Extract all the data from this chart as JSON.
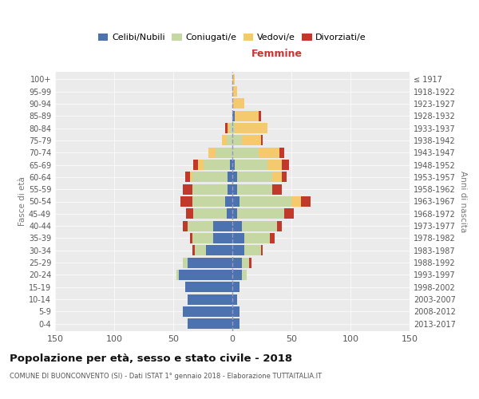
{
  "age_groups": [
    "100+",
    "95-99",
    "90-94",
    "85-89",
    "80-84",
    "75-79",
    "70-74",
    "65-69",
    "60-64",
    "55-59",
    "50-54",
    "45-49",
    "40-44",
    "35-39",
    "30-34",
    "25-29",
    "20-24",
    "15-19",
    "10-14",
    "5-9",
    "0-4"
  ],
  "birth_years": [
    "≤ 1917",
    "1918-1922",
    "1923-1927",
    "1928-1932",
    "1933-1937",
    "1938-1942",
    "1943-1947",
    "1948-1952",
    "1953-1957",
    "1958-1962",
    "1963-1967",
    "1968-1972",
    "1973-1977",
    "1978-1982",
    "1983-1987",
    "1988-1992",
    "1993-1997",
    "1998-2002",
    "2003-2007",
    "2008-2012",
    "2013-2017"
  ],
  "m_celibi": [
    38,
    42,
    38,
    40,
    45,
    38,
    22,
    16,
    16,
    5,
    6,
    4,
    4,
    2,
    0,
    0,
    0,
    0,
    0,
    0,
    0
  ],
  "m_coniugati": [
    0,
    0,
    0,
    0,
    2,
    4,
    10,
    18,
    22,
    28,
    28,
    30,
    30,
    22,
    14,
    5,
    2,
    0,
    0,
    0,
    0
  ],
  "m_vedovi": [
    0,
    0,
    0,
    0,
    0,
    0,
    0,
    0,
    0,
    0,
    0,
    0,
    2,
    5,
    6,
    4,
    2,
    0,
    0,
    0,
    0
  ],
  "m_divorziati": [
    0,
    0,
    0,
    0,
    0,
    0,
    2,
    2,
    4,
    6,
    10,
    8,
    4,
    4,
    0,
    0,
    2,
    0,
    0,
    0,
    0
  ],
  "f_nubili": [
    6,
    6,
    4,
    6,
    8,
    8,
    10,
    10,
    8,
    4,
    6,
    4,
    4,
    2,
    0,
    0,
    0,
    2,
    0,
    0,
    0
  ],
  "f_coniugate": [
    0,
    0,
    0,
    0,
    4,
    6,
    14,
    22,
    30,
    40,
    44,
    30,
    30,
    28,
    22,
    8,
    2,
    0,
    0,
    0,
    0
  ],
  "f_vedove": [
    0,
    0,
    0,
    0,
    0,
    0,
    0,
    0,
    0,
    0,
    8,
    0,
    8,
    12,
    18,
    16,
    28,
    20,
    10,
    4,
    2
  ],
  "f_divorziate": [
    0,
    0,
    0,
    0,
    0,
    2,
    2,
    4,
    4,
    8,
    8,
    8,
    4,
    6,
    4,
    2,
    0,
    2,
    0,
    0,
    0
  ],
  "colors": {
    "celibi_nubili": "#4c72b0",
    "coniugati": "#c5d8a4",
    "vedovi": "#f5c96e",
    "divorziati": "#c0392b"
  },
  "title": "Popolazione per età, sesso e stato civile - 2018",
  "subtitle": "COMUNE DI BUONCONVENTO (SI) - Dati ISTAT 1° gennaio 2018 - Elaborazione TUTTAITALIA.IT",
  "xlabel_right": "Femmine",
  "ylabel_left": "Fasce di età",
  "ylabel_right": "Anni di nascita",
  "xlim": 150,
  "bg_color": "#ffffff",
  "plot_bg": "#ebebeb",
  "grid_color": "#ffffff",
  "bar_height": 0.85
}
